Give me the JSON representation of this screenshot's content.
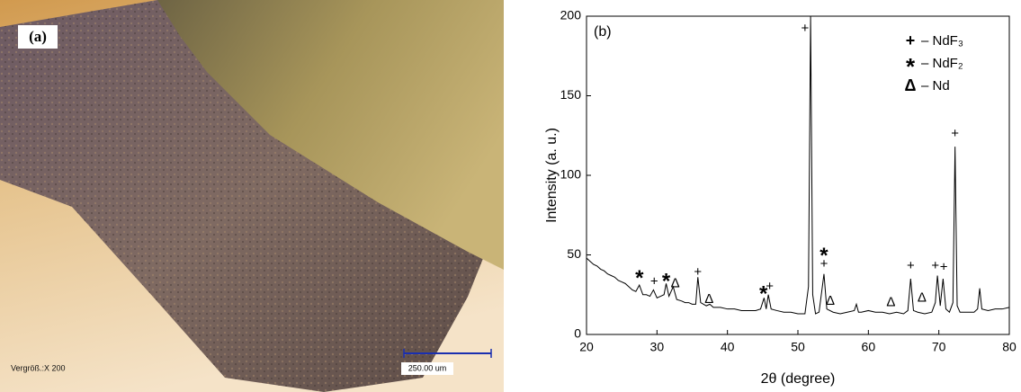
{
  "panel_a": {
    "label": "(a)",
    "magnification": "Vergröß.:X 200",
    "scale_bar": "250.00 um"
  },
  "chart_data": {
    "type": "line",
    "panel_label": "(b)",
    "x_label": "2θ (degree)",
    "y_label": "Intensity (a. u.)",
    "xlim": [
      20,
      80
    ],
    "xticks": [
      20,
      30,
      40,
      50,
      60,
      70,
      80
    ],
    "ylim": [
      0,
      200
    ],
    "yticks": [
      0,
      50,
      100,
      150,
      200
    ],
    "legend_position": "upper right",
    "legend": [
      {
        "symbol": "+",
        "label": "– NdF₃"
      },
      {
        "symbol": "*",
        "label": "– NdF₂"
      },
      {
        "symbol": "Δ",
        "label": "– Nd"
      }
    ],
    "series": [
      {
        "color": "#000000",
        "x": [
          20,
          20.5,
          21,
          21.5,
          22,
          22.5,
          23,
          23.5,
          24,
          24.5,
          25,
          25.5,
          26,
          26.5,
          27,
          27.5,
          28,
          28.5,
          29,
          29.5,
          30,
          30.5,
          31,
          31.3,
          31.7,
          32.3,
          32.8,
          33.5,
          34,
          34.5,
          35,
          35.5,
          35.8,
          36.2,
          37,
          37.5,
          38,
          39,
          40,
          41,
          42,
          43,
          44,
          44.7,
          45.2,
          45.5,
          45.8,
          46.2,
          47,
          48,
          49,
          50,
          51,
          51.5,
          51.8,
          52.1,
          52.5,
          53,
          53.7,
          54.1,
          55,
          56,
          57,
          58,
          58.3,
          58.6,
          59,
          60,
          61,
          62,
          63,
          64,
          65,
          65.6,
          66,
          66.4,
          67,
          68,
          69,
          69.5,
          69.8,
          70.2,
          70.6,
          71,
          71.5,
          72,
          72.3,
          72.6,
          73,
          74,
          75,
          75.5,
          75.8,
          76.1,
          77,
          78,
          79,
          80
        ],
        "values": [
          48,
          46,
          44,
          43,
          41,
          40,
          38,
          37,
          36,
          34,
          33,
          32,
          30,
          28,
          27,
          31,
          25,
          25,
          24,
          28,
          23,
          24,
          25,
          32,
          24,
          30,
          22,
          21,
          20,
          20,
          19,
          19,
          36,
          20,
          18,
          19,
          17,
          17,
          16,
          16,
          15,
          15,
          15,
          16,
          23,
          16,
          25,
          16,
          15,
          14,
          14,
          13,
          13,
          30,
          200,
          25,
          13,
          14,
          38,
          16,
          14,
          13,
          14,
          15,
          19,
          14,
          14,
          15,
          14,
          14,
          13,
          14,
          13,
          15,
          35,
          15,
          14,
          13,
          14,
          20,
          37,
          18,
          35,
          16,
          14,
          20,
          118,
          18,
          14,
          14,
          14,
          16,
          29,
          16,
          15,
          16,
          16,
          17
        ]
      }
    ],
    "annotations": [
      {
        "text": "+",
        "x": 51,
        "y": 192
      },
      {
        "text": "+",
        "x": 53.7,
        "y": 44
      },
      {
        "text": "+",
        "x": 72.3,
        "y": 126
      },
      {
        "text": "+",
        "x": 35.8,
        "y": 39
      },
      {
        "text": "+",
        "x": 29.6,
        "y": 33
      },
      {
        "text": "+",
        "x": 46,
        "y": 30
      },
      {
        "text": "+",
        "x": 66,
        "y": 43
      },
      {
        "text": "+",
        "x": 69.5,
        "y": 43
      },
      {
        "text": "+",
        "x": 70.7,
        "y": 42
      },
      {
        "text": "*",
        "x": 27.5,
        "y": 37
      },
      {
        "text": "*",
        "x": 31.3,
        "y": 35
      },
      {
        "text": "*",
        "x": 45.1,
        "y": 27
      },
      {
        "text": "*",
        "x": 53.7,
        "y": 51
      },
      {
        "text": "Δ",
        "x": 32.6,
        "y": 32
      },
      {
        "text": "Δ",
        "x": 37.4,
        "y": 22
      },
      {
        "text": "Δ",
        "x": 54.6,
        "y": 21
      },
      {
        "text": "Δ",
        "x": 63.2,
        "y": 20
      },
      {
        "text": "Δ",
        "x": 67.6,
        "y": 23
      }
    ]
  }
}
